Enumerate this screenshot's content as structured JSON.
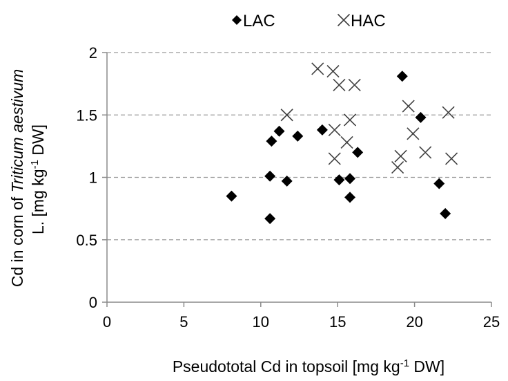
{
  "chart_data": {
    "type": "scatter",
    "xlabel": "Pseudototal Cd in topsoil [mg kg-1 DW]",
    "ylabel_line1_pre": "Cd in corn of ",
    "ylabel_line1_italic": "Triticum aestivum",
    "ylabel_line2": "L. [mg kg-1 DW]",
    "xlim": [
      0,
      25
    ],
    "ylim": [
      0,
      2
    ],
    "x_ticks": [
      0,
      5,
      10,
      15,
      20,
      25
    ],
    "y_ticks": [
      0,
      0.5,
      1,
      1.5,
      2
    ],
    "x_tick_labels": [
      "0",
      "5",
      "10",
      "15",
      "20",
      "25"
    ],
    "y_tick_labels": [
      "0",
      "0.5",
      "1",
      "1.5",
      "2"
    ],
    "grid": "horizontal dashed",
    "legend_position": "top",
    "colors": {
      "LAC": "#000000",
      "HAC": "#404040"
    },
    "series": [
      {
        "name": "LAC",
        "marker": "diamond",
        "points": [
          [
            8.1,
            0.85
          ],
          [
            10.6,
            0.67
          ],
          [
            10.6,
            1.01
          ],
          [
            10.7,
            1.29
          ],
          [
            11.2,
            1.37
          ],
          [
            11.7,
            0.97
          ],
          [
            12.4,
            1.33
          ],
          [
            14.0,
            1.38
          ],
          [
            15.1,
            0.98
          ],
          [
            15.8,
            0.99
          ],
          [
            15.8,
            0.84
          ],
          [
            16.3,
            1.2
          ],
          [
            19.2,
            1.81
          ],
          [
            20.4,
            1.48
          ],
          [
            21.6,
            0.95
          ],
          [
            22.0,
            0.71
          ]
        ]
      },
      {
        "name": "HAC",
        "marker": "cross",
        "points": [
          [
            11.7,
            1.5
          ],
          [
            13.7,
            1.87
          ],
          [
            14.7,
            1.85
          ],
          [
            14.8,
            1.38
          ],
          [
            14.8,
            1.15
          ],
          [
            15.1,
            1.74
          ],
          [
            15.6,
            1.28
          ],
          [
            15.8,
            1.46
          ],
          [
            16.1,
            1.74
          ],
          [
            18.9,
            1.08
          ],
          [
            19.1,
            1.17
          ],
          [
            19.6,
            1.57
          ],
          [
            19.9,
            1.35
          ],
          [
            20.7,
            1.2
          ],
          [
            22.2,
            1.52
          ],
          [
            22.4,
            1.15
          ]
        ]
      }
    ]
  }
}
